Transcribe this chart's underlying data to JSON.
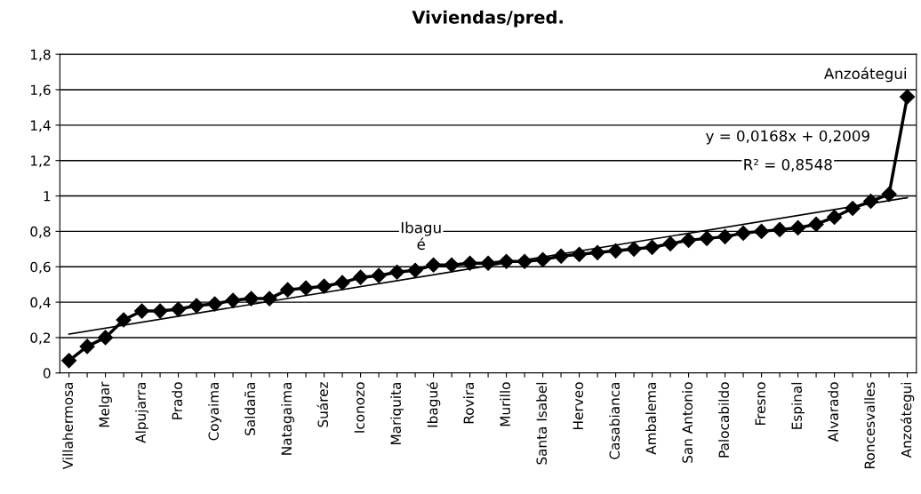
{
  "chart_data": {
    "type": "line",
    "title": "Viviendas/pred.",
    "categories": [
      "Villahermosa",
      null,
      "Melgar",
      null,
      "Alpujarra",
      null,
      "Prado",
      null,
      "Coyaima",
      null,
      "Saldaña",
      null,
      "Natagaima",
      null,
      "Suárez",
      null,
      "Iconozo",
      null,
      "Mariquita",
      null,
      "Ibagué",
      null,
      "Rovira",
      null,
      "Murillo",
      null,
      "Santa Isabel",
      null,
      "Herveo",
      null,
      "Casabianca",
      null,
      "Ambalema",
      null,
      "San Antonio",
      null,
      "Palocabildo",
      null,
      "Fresno",
      null,
      "Espinal",
      null,
      "Alvarado",
      null,
      "Roncesvalles",
      null,
      "Anzoátegui"
    ],
    "series": [
      {
        "color": "#000000",
        "marker": "diamond",
        "values": [
          0.07,
          0.15,
          0.2,
          0.3,
          0.35,
          0.35,
          0.36,
          0.38,
          0.39,
          0.41,
          0.42,
          0.42,
          0.47,
          0.48,
          0.49,
          0.51,
          0.54,
          0.55,
          0.57,
          0.58,
          0.61,
          0.61,
          0.62,
          0.62,
          0.63,
          0.63,
          0.64,
          0.66,
          0.67,
          0.68,
          0.69,
          0.7,
          0.71,
          0.73,
          0.75,
          0.76,
          0.77,
          0.79,
          0.8,
          0.81,
          0.82,
          0.84,
          0.88,
          0.93,
          0.97,
          1.01,
          1.56
        ]
      },
      {
        "type": "line",
        "color": "#000000",
        "marker": "none",
        "x": [
          "Villahermosa",
          "Anzoátegui"
        ],
        "values": [
          0.22,
          0.99
        ]
      }
    ],
    "ylim": [
      0,
      1.8
    ],
    "yticks": [
      0,
      {
        "value": 0.2,
        "label": "0,2"
      },
      {
        "value": 0.4,
        "label": "0,4"
      },
      {
        "value": 0.6,
        "label": "0,6"
      },
      {
        "value": 0.8,
        "label": "0,8"
      },
      1,
      {
        "value": 1.2,
        "label": "1,2"
      },
      {
        "value": 1.4,
        "label": "1,4"
      },
      {
        "value": 1.6,
        "label": "1,6"
      },
      {
        "value": 1.8,
        "label": "1,8"
      }
    ],
    "grid": "y",
    "legend": false,
    "annotations": [
      {
        "text": "Ibagu\né",
        "x": "Ibagué",
        "y": 0.61
      },
      {
        "text": "Anzoátegui",
        "x": "Anzoátegui",
        "y": 1.56
      },
      "y = 0,0168x + 0,2009",
      "R² = 0,8548"
    ]
  }
}
